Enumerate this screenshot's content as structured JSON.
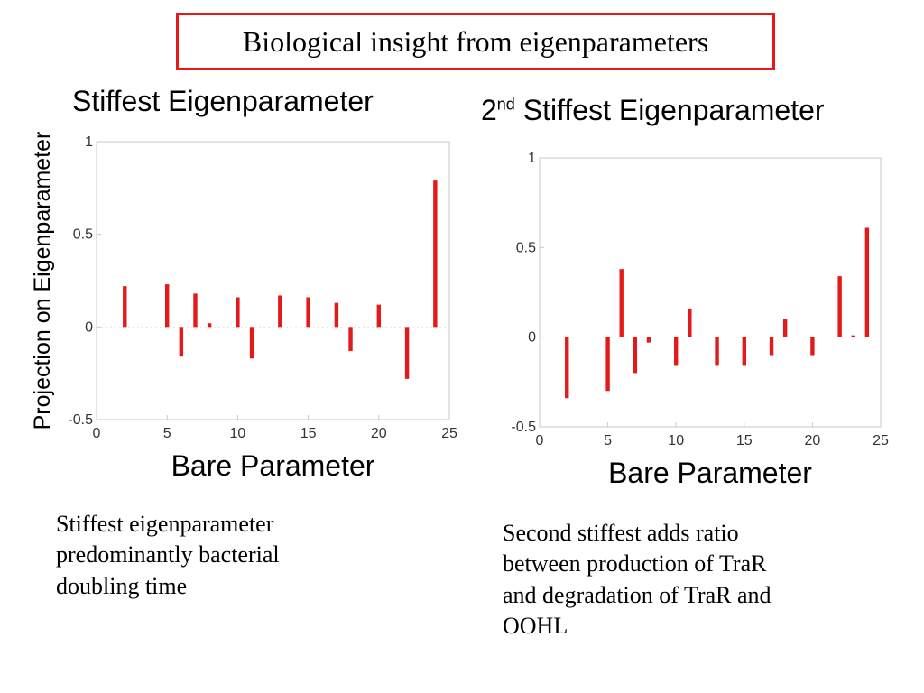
{
  "slide": {
    "title": "Biological insight from eigenparameters"
  },
  "left_panel": {
    "title": "Stiffest Eigenparameter",
    "caption_lines": [
      "Stiffest eigenparameter",
      "predominantly bacterial",
      "doubling time"
    ]
  },
  "right_panel": {
    "title_prefix": "2",
    "title_sup": "nd",
    "title_rest": " Stiffest Eigenparameter",
    "caption_lines": [
      "Second stiffest adds ratio",
      "between production of TraR",
      "and degradation of TraR and",
      "OOHL"
    ]
  },
  "colors": {
    "bar": "#e41a1a",
    "frame": "#c8c8c8",
    "title_border": "#e41a1a"
  },
  "chart_data": [
    {
      "type": "bar",
      "title": "Stiffest Eigenparameter",
      "xlabel": "Bare Parameter",
      "ylabel": "Projection on Eigenparameter",
      "xlim": [
        0,
        25
      ],
      "ylim": [
        -0.5,
        1
      ],
      "xticks": [
        0,
        5,
        10,
        15,
        20,
        25
      ],
      "yticks": [
        -0.5,
        0,
        0.5,
        1
      ],
      "ytick_labels": [
        "-0.5",
        "0",
        "0.5",
        "1"
      ],
      "x": [
        2,
        5,
        6,
        7,
        8,
        10,
        11,
        13,
        15,
        17,
        18,
        20,
        22,
        24
      ],
      "values": [
        0.22,
        0.23,
        -0.16,
        0.18,
        0.02,
        0.16,
        -0.17,
        0.17,
        0.16,
        0.13,
        -0.13,
        0.12,
        -0.28,
        0.79
      ]
    },
    {
      "type": "bar",
      "title": "2nd Stiffest Eigenparameter",
      "xlabel": "Bare Parameter",
      "ylabel": "",
      "xlim": [
        0,
        25
      ],
      "ylim": [
        -0.5,
        1
      ],
      "xticks": [
        0,
        5,
        10,
        15,
        20,
        25
      ],
      "yticks": [
        -0.5,
        0,
        0.5,
        1
      ],
      "ytick_labels": [
        "-0.5",
        "0",
        "0.5",
        "1"
      ],
      "x": [
        2,
        5,
        6,
        7,
        8,
        10,
        11,
        13,
        15,
        17,
        18,
        20,
        22,
        23,
        24
      ],
      "values": [
        -0.34,
        -0.3,
        0.38,
        -0.2,
        -0.03,
        -0.16,
        0.16,
        -0.16,
        -0.16,
        -0.1,
        0.1,
        -0.1,
        0.34,
        0.01,
        0.61
      ]
    }
  ]
}
